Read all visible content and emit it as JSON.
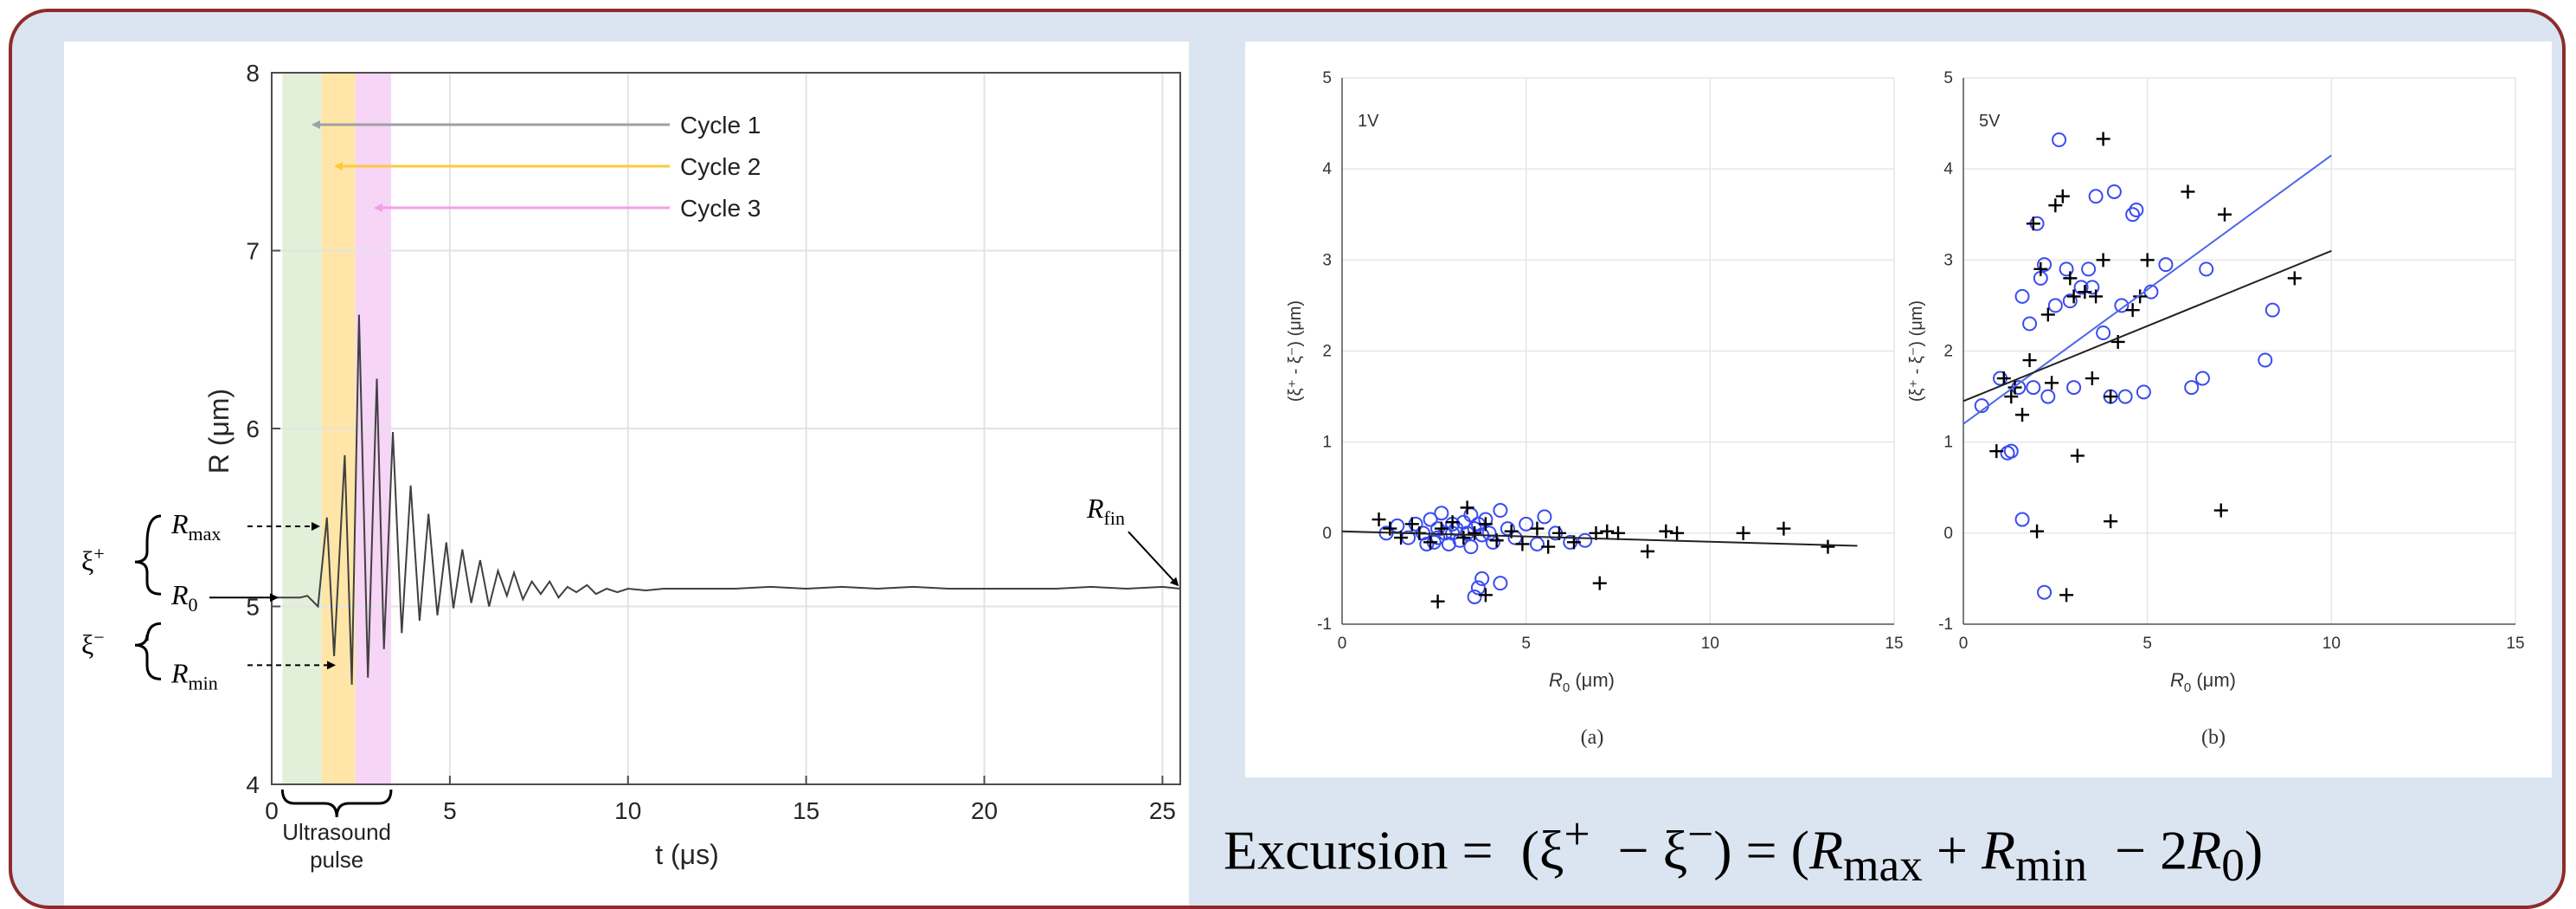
{
  "left_plot": {
    "xlabel": "t (μs)",
    "ylabel": "R (μm)",
    "arrows": [
      {
        "label": "Cycle 1",
        "color": "#a0a0a0"
      },
      {
        "label": "Cycle 2",
        "color": "#ffc83c"
      },
      {
        "label": "Cycle 3",
        "color": "#f0a0e6"
      }
    ],
    "annotations": {
      "rmax": "R_max",
      "r0": "R_0",
      "rmin": "R_min",
      "rfin": "R_fin",
      "xi_plus": "ξ+",
      "xi_minus": "ξ−",
      "pulse_line1": "Ultrasound",
      "pulse_line2": "pulse"
    },
    "bands": {
      "green": "#e2efd9",
      "orange": "#ffe6a8",
      "pink": "#f6d5f6"
    }
  },
  "right_plot": {
    "panel_a_tag": "1V",
    "panel_b_tag": "5V",
    "caption_a": "(a)",
    "caption_b": "(b)",
    "xlabel": "R_0 (μm)",
    "ylabel": "(ξ+ - ξ-) (μm)"
  },
  "equation": "Excursion = (ξ⁺ − ξ⁻) = (R_max + R_min − 2R_0)",
  "chart_data": [
    {
      "type": "line",
      "title": "",
      "xlabel": "t (μs)",
      "ylabel": "R (μm)",
      "xlim": [
        0,
        25.5
      ],
      "ylim": [
        4,
        8
      ],
      "xticks": [
        0,
        5,
        10,
        15,
        20,
        25
      ],
      "yticks": [
        4,
        5,
        6,
        7,
        8
      ],
      "grid": true,
      "series": [
        {
          "x": [
            0,
            0.4,
            0.8,
            1.0,
            1.3,
            1.55,
            1.75,
            2.05,
            2.25,
            2.45,
            2.7,
            2.95,
            3.15,
            3.4,
            3.65,
            3.9,
            4.15,
            4.4,
            4.65,
            4.9,
            5.1,
            5.35,
            5.6,
            5.85,
            6.1,
            6.35,
            6.6,
            6.8,
            7.05,
            7.3,
            7.55,
            7.8,
            8.05,
            8.3,
            8.55,
            8.85,
            9.1,
            9.4,
            9.7,
            10.0,
            10.5,
            11,
            12,
            13,
            14,
            15,
            16,
            17,
            18,
            19,
            20,
            21,
            22,
            23,
            24,
            25,
            25.5
          ],
          "y": [
            5.05,
            5.05,
            5.05,
            5.06,
            5.0,
            5.5,
            4.72,
            5.85,
            4.56,
            6.64,
            4.6,
            6.28,
            4.76,
            5.98,
            4.85,
            5.68,
            4.92,
            5.52,
            4.95,
            5.36,
            4.99,
            5.32,
            5.02,
            5.26,
            5.0,
            5.2,
            5.06,
            5.19,
            5.04,
            5.14,
            5.07,
            5.14,
            5.05,
            5.11,
            5.08,
            5.12,
            5.07,
            5.1,
            5.08,
            5.1,
            5.09,
            5.1,
            5.1,
            5.1,
            5.11,
            5.1,
            5.11,
            5.1,
            5.11,
            5.1,
            5.1,
            5.1,
            5.1,
            5.11,
            5.1,
            5.11,
            5.1
          ]
        }
      ],
      "annotations": [
        {
          "x": [
            0.3,
            1.4
          ],
          "label": "green band"
        },
        {
          "x": [
            1.4,
            2.35
          ],
          "label": "orange band"
        },
        {
          "x": [
            2.35,
            3.35
          ],
          "label": "pink band"
        }
      ]
    },
    {
      "type": "scatter",
      "title": "1V",
      "xlabel": "R_0 (μm)",
      "ylabel": "(ξ+ - ξ-) (μm)",
      "xlim": [
        0,
        15
      ],
      "ylim": [
        -1,
        5
      ],
      "xticks": [
        0,
        5,
        10,
        15
      ],
      "yticks": [
        -1,
        0,
        1,
        2,
        3,
        4,
        5
      ],
      "grid": true,
      "series": [
        {
          "marker": "circle",
          "color": "#3a4cf0",
          "x": [
            1.2,
            1.5,
            1.8,
            2.0,
            2.2,
            2.4,
            2.5,
            2.6,
            2.7,
            2.8,
            2.9,
            3.0,
            3.1,
            3.2,
            3.3,
            3.4,
            3.5,
            3.5,
            3.6,
            3.7,
            3.8,
            3.9,
            4.0,
            4.1,
            4.3,
            4.5,
            4.7,
            5.0,
            5.3,
            5.5,
            5.8,
            6.2,
            6.6,
            3.6,
            3.7,
            3.8,
            2.3,
            2.6,
            3.0,
            4.3
          ],
          "y": [
            0.0,
            0.08,
            -0.05,
            0.1,
            0.0,
            0.15,
            -0.1,
            0.05,
            0.22,
            0.0,
            -0.12,
            0.1,
            0.05,
            -0.08,
            0.12,
            0.0,
            0.2,
            -0.15,
            0.05,
            0.1,
            -0.02,
            0.15,
            0.0,
            -0.1,
            0.25,
            0.05,
            -0.05,
            0.1,
            -0.12,
            0.18,
            0.0,
            -0.1,
            -0.08,
            -0.7,
            -0.6,
            -0.5,
            -0.12,
            -0.05,
            0.0,
            -0.55
          ]
        },
        {
          "marker": "plus",
          "color": "#000000",
          "x": [
            1.0,
            1.3,
            1.6,
            1.9,
            2.1,
            2.4,
            2.7,
            3.0,
            3.3,
            3.4,
            3.6,
            3.9,
            4.2,
            4.6,
            4.9,
            5.3,
            5.6,
            5.9,
            6.3,
            6.9,
            7.2,
            7.5,
            8.3,
            8.8,
            9.1,
            10.9,
            12.0,
            13.2,
            2.6,
            3.9,
            7.0
          ],
          "y": [
            0.15,
            0.05,
            -0.05,
            0.1,
            0.0,
            -0.1,
            0.05,
            0.12,
            -0.05,
            0.28,
            0.0,
            0.1,
            -0.08,
            0.02,
            -0.12,
            0.05,
            -0.15,
            0.0,
            -0.1,
            0.0,
            0.02,
            0.0,
            -0.2,
            0.02,
            0.0,
            0.0,
            0.05,
            -0.15,
            -0.75,
            -0.68,
            -0.55
          ]
        },
        {
          "type": "line",
          "color": "#222222",
          "x": [
            0,
            14
          ],
          "y": [
            0.02,
            -0.14
          ]
        }
      ]
    },
    {
      "type": "scatter",
      "title": "5V",
      "xlabel": "R_0 (μm)",
      "ylabel": "(ξ+ - ξ-) (μm)",
      "xlim": [
        0,
        15
      ],
      "ylim": [
        -1,
        5
      ],
      "xticks": [
        0,
        5,
        10,
        15
      ],
      "yticks": [
        -1,
        0,
        1,
        2,
        3,
        4,
        5
      ],
      "grid": true,
      "series": [
        {
          "marker": "circle",
          "color": "#3a4cf0",
          "x": [
            0.5,
            1.0,
            1.2,
            1.3,
            1.5,
            1.6,
            1.8,
            1.9,
            2.0,
            2.1,
            2.2,
            2.3,
            2.5,
            2.6,
            2.8,
            2.9,
            3.0,
            3.2,
            3.4,
            3.5,
            3.6,
            3.8,
            4.0,
            4.1,
            4.3,
            4.4,
            4.6,
            4.7,
            4.9,
            5.1,
            5.5,
            6.2,
            6.5,
            6.6,
            8.2,
            8.4,
            1.6,
            2.2
          ],
          "y": [
            1.4,
            1.7,
            0.88,
            0.9,
            1.6,
            2.6,
            2.3,
            1.6,
            3.4,
            2.8,
            2.95,
            1.5,
            2.5,
            4.32,
            2.9,
            2.55,
            1.6,
            2.7,
            2.9,
            2.7,
            3.7,
            2.2,
            1.5,
            3.75,
            2.5,
            1.5,
            3.5,
            3.55,
            1.55,
            2.65,
            2.95,
            1.6,
            1.7,
            2.9,
            1.9,
            2.45,
            0.15,
            -0.65
          ]
        },
        {
          "marker": "plus",
          "color": "#000000",
          "x": [
            0.9,
            1.1,
            1.3,
            1.4,
            1.6,
            1.8,
            1.9,
            2.1,
            2.3,
            2.4,
            2.5,
            2.7,
            2.9,
            3.0,
            3.1,
            3.3,
            3.5,
            3.6,
            3.8,
            4.0,
            4.2,
            4.6,
            4.8,
            5.0,
            6.1,
            7.1,
            9.0,
            3.8,
            2.0,
            2.8,
            4.0,
            7.0
          ],
          "y": [
            0.9,
            1.7,
            1.5,
            1.6,
            1.3,
            1.9,
            3.4,
            2.9,
            2.4,
            1.65,
            3.6,
            3.7,
            2.8,
            2.6,
            0.85,
            2.65,
            1.7,
            2.6,
            4.33,
            1.5,
            2.1,
            2.45,
            2.6,
            3.0,
            3.75,
            3.5,
            2.8,
            3.0,
            0.02,
            -0.68,
            0.13,
            0.25
          ]
        },
        {
          "type": "line",
          "color": "#4f67e8",
          "x": [
            0,
            10
          ],
          "y": [
            1.2,
            4.15
          ]
        },
        {
          "type": "line",
          "color": "#222222",
          "x": [
            0,
            10
          ],
          "y": [
            1.45,
            3.1
          ]
        }
      ]
    }
  ]
}
